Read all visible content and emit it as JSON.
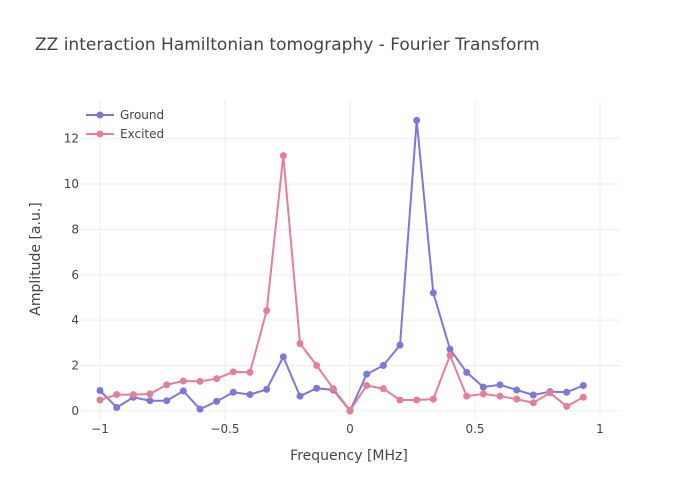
{
  "chart_data": {
    "type": "line",
    "title": "ZZ interaction Hamiltonian tomography - Fourier Transform",
    "xlabel": "Frequency [MHz]",
    "ylabel": "Amplitude [a.u.]",
    "xlim": [
      -1.08,
      1.08
    ],
    "ylim": [
      -0.4,
      13.7
    ],
    "xticks": [
      -1,
      -0.5,
      0,
      0.5,
      1
    ],
    "xtick_labels": [
      "−1",
      "−0.5",
      "0",
      "0.5",
      "1"
    ],
    "yticks": [
      0,
      2,
      4,
      6,
      8,
      10,
      12
    ],
    "ytick_labels": [
      "0",
      "2",
      "4",
      "6",
      "8",
      "10",
      "12"
    ],
    "grid": true,
    "legend_position": "top-left",
    "x": [
      -1,
      -0.9333,
      -0.8667,
      -0.8,
      -0.7333,
      -0.6667,
      -0.6,
      -0.5333,
      -0.4667,
      -0.4,
      -0.3333,
      -0.2667,
      -0.2,
      -0.1333,
      -0.0667,
      0,
      0.0667,
      0.1333,
      0.2,
      0.2667,
      0.3333,
      0.4,
      0.4667,
      0.5333,
      0.6,
      0.6667,
      0.7333,
      0.8,
      0.8667,
      0.9333
    ],
    "series": [
      {
        "name": "Ground",
        "color": "#7b78d9",
        "values": [
          0.9,
          0.15,
          0.6,
          0.45,
          0.45,
          0.88,
          0.08,
          0.42,
          0.82,
          0.72,
          0.95,
          2.38,
          0.65,
          1.0,
          0.92,
          0.0,
          1.62,
          2.0,
          2.9,
          12.8,
          5.2,
          2.72,
          1.7,
          1.05,
          1.15,
          0.92,
          0.7,
          0.85,
          0.82,
          1.12
        ]
      },
      {
        "name": "Excited",
        "color": "#e47f98",
        "values": [
          0.48,
          0.72,
          0.72,
          0.75,
          1.15,
          1.32,
          1.3,
          1.42,
          1.72,
          1.7,
          4.42,
          11.25,
          2.97,
          2.0,
          0.98,
          0.02,
          1.12,
          0.98,
          0.48,
          0.48,
          0.52,
          2.45,
          0.65,
          0.75,
          0.65,
          0.52,
          0.36,
          0.8,
          0.2,
          0.6
        ]
      }
    ]
  }
}
